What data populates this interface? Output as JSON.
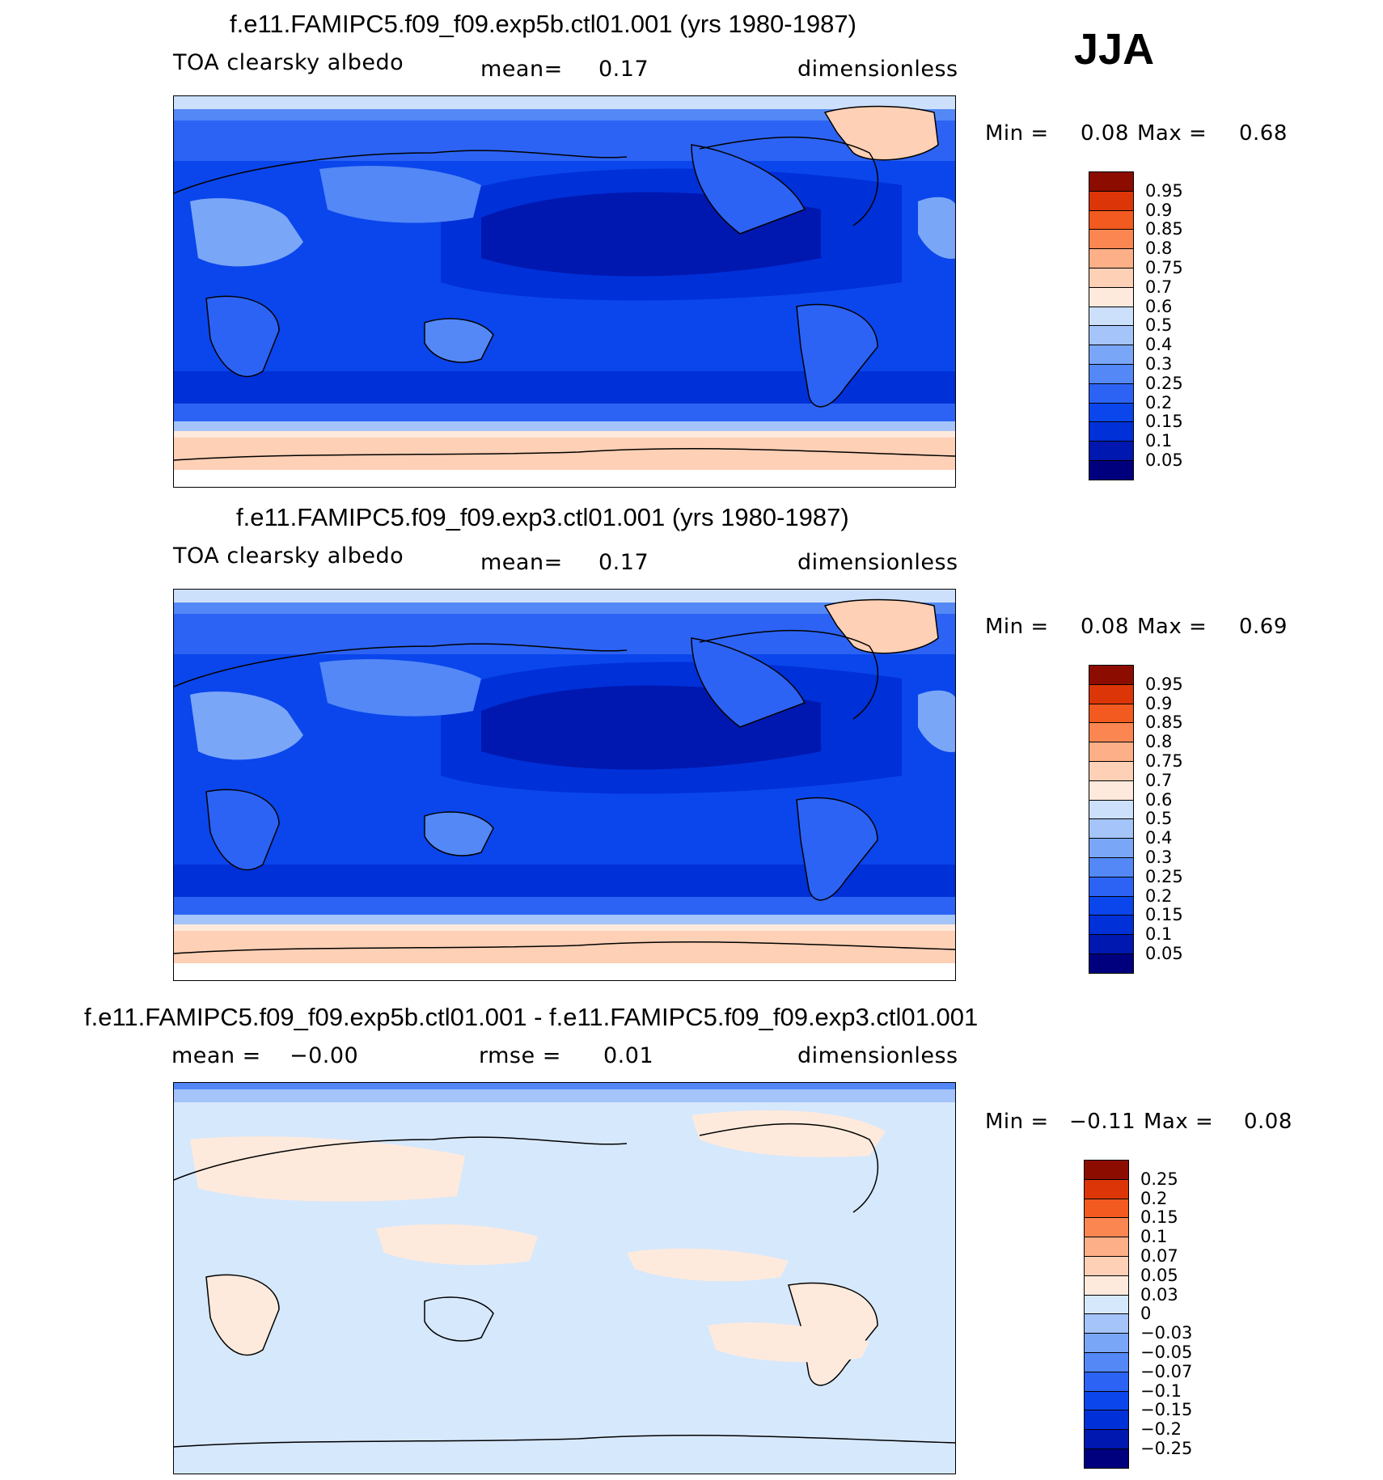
{
  "season": "JJA",
  "panels": [
    {
      "title": "f.e11.FAMIPC5.f09_f09.exp5b.ctl01.001 (yrs 1980-1987)",
      "variable": "TOA clearsky albedo",
      "stat1": "mean=",
      "stat1_value": "0.17",
      "stat2": "",
      "stat2_value": "",
      "units": "dimensionless",
      "min_label": "Min =",
      "min_value": "0.08",
      "max_label": "Max =",
      "max_value": "0.68",
      "colorbar": {
        "levels": [
          "0.05",
          "0.1",
          "0.15",
          "0.2",
          "0.25",
          "0.3",
          "0.4",
          "0.5",
          "0.6",
          "0.7",
          "0.75",
          "0.8",
          "0.85",
          "0.9",
          "0.95"
        ],
        "colors": [
          "#00007e",
          "#0018b0",
          "#0030d8",
          "#0a46ec",
          "#2c63f4",
          "#5388f6",
          "#7aa6f8",
          "#a4c4fa",
          "#cce0fc",
          "#feeadc",
          "#fed0b6",
          "#fdaf88",
          "#fb8652",
          "#f25a20",
          "#dc3608",
          "#8c0c00"
        ]
      }
    },
    {
      "title": "f.e11.FAMIPC5.f09_f09.exp3.ctl01.001 (yrs 1980-1987)",
      "variable": "TOA clearsky albedo",
      "stat1": "mean=",
      "stat1_value": "0.17",
      "stat2": "",
      "stat2_value": "",
      "units": "dimensionless",
      "min_label": "Min =",
      "min_value": "0.08",
      "max_label": "Max =",
      "max_value": "0.69",
      "colorbar": {
        "levels": [
          "0.05",
          "0.1",
          "0.15",
          "0.2",
          "0.25",
          "0.3",
          "0.4",
          "0.5",
          "0.6",
          "0.7",
          "0.75",
          "0.8",
          "0.85",
          "0.9",
          "0.95"
        ],
        "colors": [
          "#00007e",
          "#0018b0",
          "#0030d8",
          "#0a46ec",
          "#2c63f4",
          "#5388f6",
          "#7aa6f8",
          "#a4c4fa",
          "#cce0fc",
          "#feeadc",
          "#fed0b6",
          "#fdaf88",
          "#fb8652",
          "#f25a20",
          "#dc3608",
          "#8c0c00"
        ]
      }
    },
    {
      "title": "f.e11.FAMIPC5.f09_f09.exp5b.ctl01.001 - f.e11.FAMIPC5.f09_f09.exp3.ctl01.001",
      "variable": "",
      "stat1": "mean =",
      "stat1_value": "−0.00",
      "stat2": "rmse =",
      "stat2_value": "0.01",
      "units": "dimensionless",
      "min_label": "Min =",
      "min_value": "−0.11",
      "max_label": "Max =",
      "max_value": "0.08",
      "colorbar": {
        "levels": [
          "−0.25",
          "−0.2",
          "−0.15",
          "−0.1",
          "−0.07",
          "−0.05",
          "−0.03",
          "0",
          "0.03",
          "0.05",
          "0.07",
          "0.1",
          "0.15",
          "0.2",
          "0.25"
        ],
        "colors": [
          "#00007e",
          "#0018b0",
          "#0030d8",
          "#0a46ec",
          "#2c63f4",
          "#5388f6",
          "#7aa6f8",
          "#a4c4fa",
          "#d6e8fc",
          "#feeadc",
          "#fed0b6",
          "#fdaf88",
          "#fb8652",
          "#f25a20",
          "#dc3608",
          "#8c0c00"
        ]
      }
    }
  ]
}
